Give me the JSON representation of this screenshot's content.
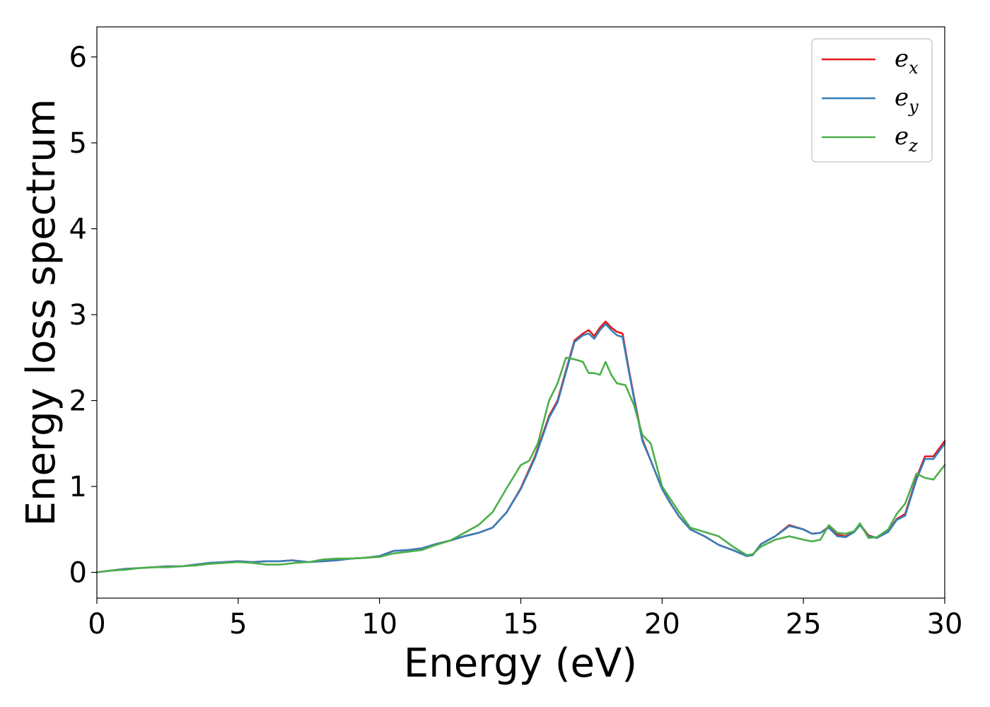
{
  "chart_data": {
    "type": "line",
    "title": "",
    "xlabel": "Energy (eV)",
    "ylabel": "Energy loss spectrum",
    "xlim": [
      0,
      30
    ],
    "ylim": [
      -0.3,
      6.35
    ],
    "xticks": [
      0,
      5,
      10,
      15,
      20,
      25,
      30
    ],
    "yticks": [
      0,
      1,
      2,
      3,
      4,
      5,
      6
    ],
    "grid": false,
    "legend_position": "top-right",
    "series": [
      {
        "name": "e",
        "subscript": "x",
        "color": "#e41a1c",
        "x": [
          0,
          0.5,
          1,
          1.5,
          2,
          2.5,
          3,
          3.5,
          4,
          4.5,
          5,
          5.5,
          6,
          6.5,
          6.9,
          7.2,
          7.5,
          8,
          8.5,
          9,
          9.5,
          10,
          10.5,
          11,
          11.5,
          12,
          12.5,
          13,
          13.5,
          14,
          14.5,
          15,
          15.5,
          16,
          16.3,
          16.6,
          16.9,
          17.2,
          17.4,
          17.6,
          17.8,
          18.0,
          18.2,
          18.4,
          18.6,
          18.8,
          19.0,
          19.3,
          19.6,
          20.0,
          20.3,
          20.6,
          21.0,
          21.5,
          22,
          22.5,
          23.0,
          23.2,
          23.5,
          24,
          24.5,
          25,
          25.3,
          25.6,
          25.9,
          26.2,
          26.5,
          26.8,
          27.0,
          27.3,
          27.6,
          28.0,
          28.3,
          28.6,
          29.0,
          29.3,
          29.6,
          30
        ],
        "y": [
          0.0,
          0.02,
          0.04,
          0.05,
          0.06,
          0.07,
          0.07,
          0.09,
          0.11,
          0.12,
          0.13,
          0.12,
          0.13,
          0.13,
          0.14,
          0.13,
          0.12,
          0.13,
          0.14,
          0.16,
          0.17,
          0.19,
          0.25,
          0.26,
          0.28,
          0.33,
          0.37,
          0.42,
          0.46,
          0.52,
          0.7,
          0.98,
          1.35,
          1.82,
          2.0,
          2.35,
          2.7,
          2.78,
          2.82,
          2.75,
          2.85,
          2.92,
          2.85,
          2.8,
          2.78,
          2.4,
          2.05,
          1.55,
          1.3,
          0.97,
          0.8,
          0.65,
          0.5,
          0.42,
          0.32,
          0.26,
          0.19,
          0.2,
          0.33,
          0.42,
          0.55,
          0.5,
          0.45,
          0.46,
          0.53,
          0.44,
          0.42,
          0.48,
          0.56,
          0.43,
          0.4,
          0.48,
          0.62,
          0.68,
          1.1,
          1.35,
          1.35,
          1.53
        ]
      },
      {
        "name": "e",
        "subscript": "y",
        "color": "#377eb8",
        "x": [
          0,
          0.5,
          1,
          1.5,
          2,
          2.5,
          3,
          3.5,
          4,
          4.5,
          5,
          5.5,
          6,
          6.5,
          6.9,
          7.2,
          7.5,
          8,
          8.5,
          9,
          9.5,
          10,
          10.5,
          11,
          11.5,
          12,
          12.5,
          13,
          13.5,
          14,
          14.5,
          15,
          15.5,
          16,
          16.3,
          16.6,
          16.9,
          17.2,
          17.4,
          17.6,
          17.8,
          18.0,
          18.2,
          18.4,
          18.6,
          18.8,
          19.0,
          19.3,
          19.6,
          20.0,
          20.3,
          20.6,
          21.0,
          21.5,
          22,
          22.5,
          23.0,
          23.2,
          23.5,
          24,
          24.5,
          25,
          25.3,
          25.6,
          25.9,
          26.2,
          26.5,
          26.8,
          27.0,
          27.3,
          27.6,
          28.0,
          28.3,
          28.6,
          29.0,
          29.3,
          29.6,
          30
        ],
        "y": [
          0.0,
          0.02,
          0.04,
          0.05,
          0.06,
          0.07,
          0.07,
          0.09,
          0.11,
          0.12,
          0.13,
          0.12,
          0.13,
          0.13,
          0.14,
          0.13,
          0.12,
          0.13,
          0.14,
          0.16,
          0.17,
          0.19,
          0.25,
          0.26,
          0.28,
          0.33,
          0.37,
          0.42,
          0.46,
          0.52,
          0.7,
          0.97,
          1.33,
          1.8,
          1.98,
          2.33,
          2.68,
          2.76,
          2.78,
          2.72,
          2.82,
          2.89,
          2.82,
          2.76,
          2.74,
          2.38,
          2.03,
          1.53,
          1.3,
          0.97,
          0.8,
          0.65,
          0.5,
          0.42,
          0.32,
          0.26,
          0.19,
          0.2,
          0.33,
          0.42,
          0.54,
          0.5,
          0.45,
          0.46,
          0.52,
          0.42,
          0.41,
          0.47,
          0.55,
          0.42,
          0.4,
          0.47,
          0.61,
          0.66,
          1.08,
          1.32,
          1.32,
          1.5
        ]
      },
      {
        "name": "e",
        "subscript": "z",
        "color": "#4daf4a",
        "x": [
          0,
          0.5,
          1,
          1.5,
          2,
          2.5,
          3,
          3.5,
          4,
          4.5,
          5,
          5.5,
          6,
          6.5,
          7,
          7.5,
          8,
          8.5,
          9,
          9.5,
          10,
          10.5,
          11,
          11.5,
          12,
          12.5,
          13,
          13.5,
          14,
          14.5,
          15,
          15.3,
          15.6,
          16.0,
          16.3,
          16.6,
          16.9,
          17.2,
          17.4,
          17.6,
          17.8,
          18.0,
          18.2,
          18.4,
          18.7,
          19.0,
          19.3,
          19.6,
          20.0,
          20.3,
          20.6,
          21.0,
          21.5,
          22,
          22.5,
          23.0,
          23.2,
          23.5,
          24,
          24.5,
          25,
          25.3,
          25.6,
          25.9,
          26.2,
          26.5,
          26.8,
          27.0,
          27.3,
          27.6,
          28.0,
          28.3,
          28.6,
          29.0,
          29.3,
          29.6,
          30
        ],
        "y": [
          0.0,
          0.02,
          0.03,
          0.05,
          0.06,
          0.06,
          0.07,
          0.08,
          0.1,
          0.11,
          0.12,
          0.11,
          0.09,
          0.09,
          0.11,
          0.12,
          0.15,
          0.16,
          0.16,
          0.17,
          0.18,
          0.22,
          0.24,
          0.26,
          0.32,
          0.37,
          0.46,
          0.55,
          0.7,
          0.98,
          1.25,
          1.3,
          1.5,
          2.0,
          2.2,
          2.5,
          2.48,
          2.45,
          2.32,
          2.32,
          2.3,
          2.45,
          2.3,
          2.2,
          2.18,
          1.95,
          1.6,
          1.5,
          1.0,
          0.85,
          0.7,
          0.52,
          0.47,
          0.42,
          0.3,
          0.2,
          0.21,
          0.3,
          0.38,
          0.42,
          0.38,
          0.36,
          0.38,
          0.55,
          0.46,
          0.45,
          0.48,
          0.57,
          0.4,
          0.41,
          0.5,
          0.68,
          0.8,
          1.15,
          1.1,
          1.08,
          1.25
        ]
      }
    ]
  }
}
